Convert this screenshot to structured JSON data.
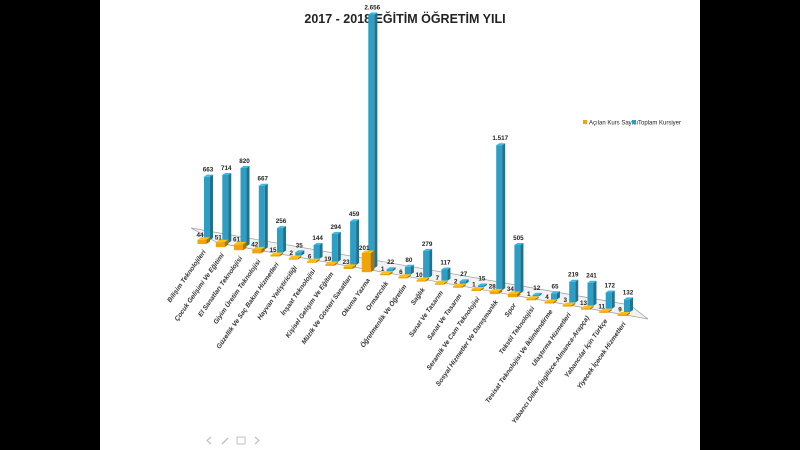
{
  "chart_data": {
    "type": "bar",
    "title": "2017 - 2018 EĞİTİM ÖĞRETİM YILI",
    "xlabel": "",
    "ylabel": "",
    "legend_position": "right",
    "categories": [
      "Bilişim Teknolojileri",
      "Çocuk Gelişimi Ve Eğitimi",
      "El Sanatları Teknolojisi",
      "Giyim Üretim Teknolojisi",
      "Güzellik Ve Saç Bakım Hizmetleri",
      "Hayvan Yetiştiriciliği",
      "İnşaat Teknolojisi",
      "Kişisel Gelişim Ve Eğitim",
      "Müzik Ve Gösteri Sanatları",
      "Okuma Yazma",
      "Ormancılık",
      "Öğretmenlik Ve Öğretim",
      "Sağlık",
      "Sanat Ve Tasarım",
      "Sanat Ve Tasarım",
      "Seramik Ve Cam Teknolojisi",
      "Sosyal Hizmetler Ve Danışmanlık",
      "Spor",
      "Tekstil Teknolojisi",
      "Tesisat Teknolojisi Ve İklimlendirme",
      "Ulaştırma Hizmetleri",
      "Yabancı Diller (İngilizce-Almanca-Arapça)",
      "Yabancılar İçin Türkçe",
      "Yiyecek İçecek Hizmetleri"
    ],
    "series": [
      {
        "name": "Açılan Kurs Sayısı",
        "color": "#f0a30a",
        "values": [
          44,
          51,
          61,
          42,
          15,
          2,
          6,
          19,
          23,
          201,
          1,
          6,
          10,
          7,
          2,
          1,
          28,
          34,
          1,
          4,
          3,
          13,
          11,
          9
        ],
        "labels": [
          "44",
          "51",
          "61",
          "42",
          "15",
          "2",
          "6",
          "19",
          "23",
          "201",
          "1",
          "6",
          "10",
          "7",
          "2",
          "1",
          "28",
          "34",
          "1",
          "4",
          "3",
          "13",
          "11",
          "9"
        ]
      },
      {
        "name": "Toplam Kursiyer",
        "color": "#2e9ec4",
        "values": [
          663,
          714,
          820,
          667,
          256,
          35,
          144,
          294,
          459,
          2656,
          22,
          80,
          279,
          117,
          27,
          15,
          1517,
          505,
          12,
          65,
          219,
          241,
          172,
          132
        ],
        "labels": [
          "663",
          "714",
          "820",
          "667",
          "256",
          "35",
          "144",
          "294",
          "459",
          "2.656",
          "22",
          "80",
          "279",
          "117",
          "27",
          "15",
          "1.517",
          "505",
          "12",
          "65",
          "219",
          "241",
          "172",
          "132"
        ]
      }
    ],
    "ylim": [
      0,
      2700
    ],
    "grid": false
  }
}
